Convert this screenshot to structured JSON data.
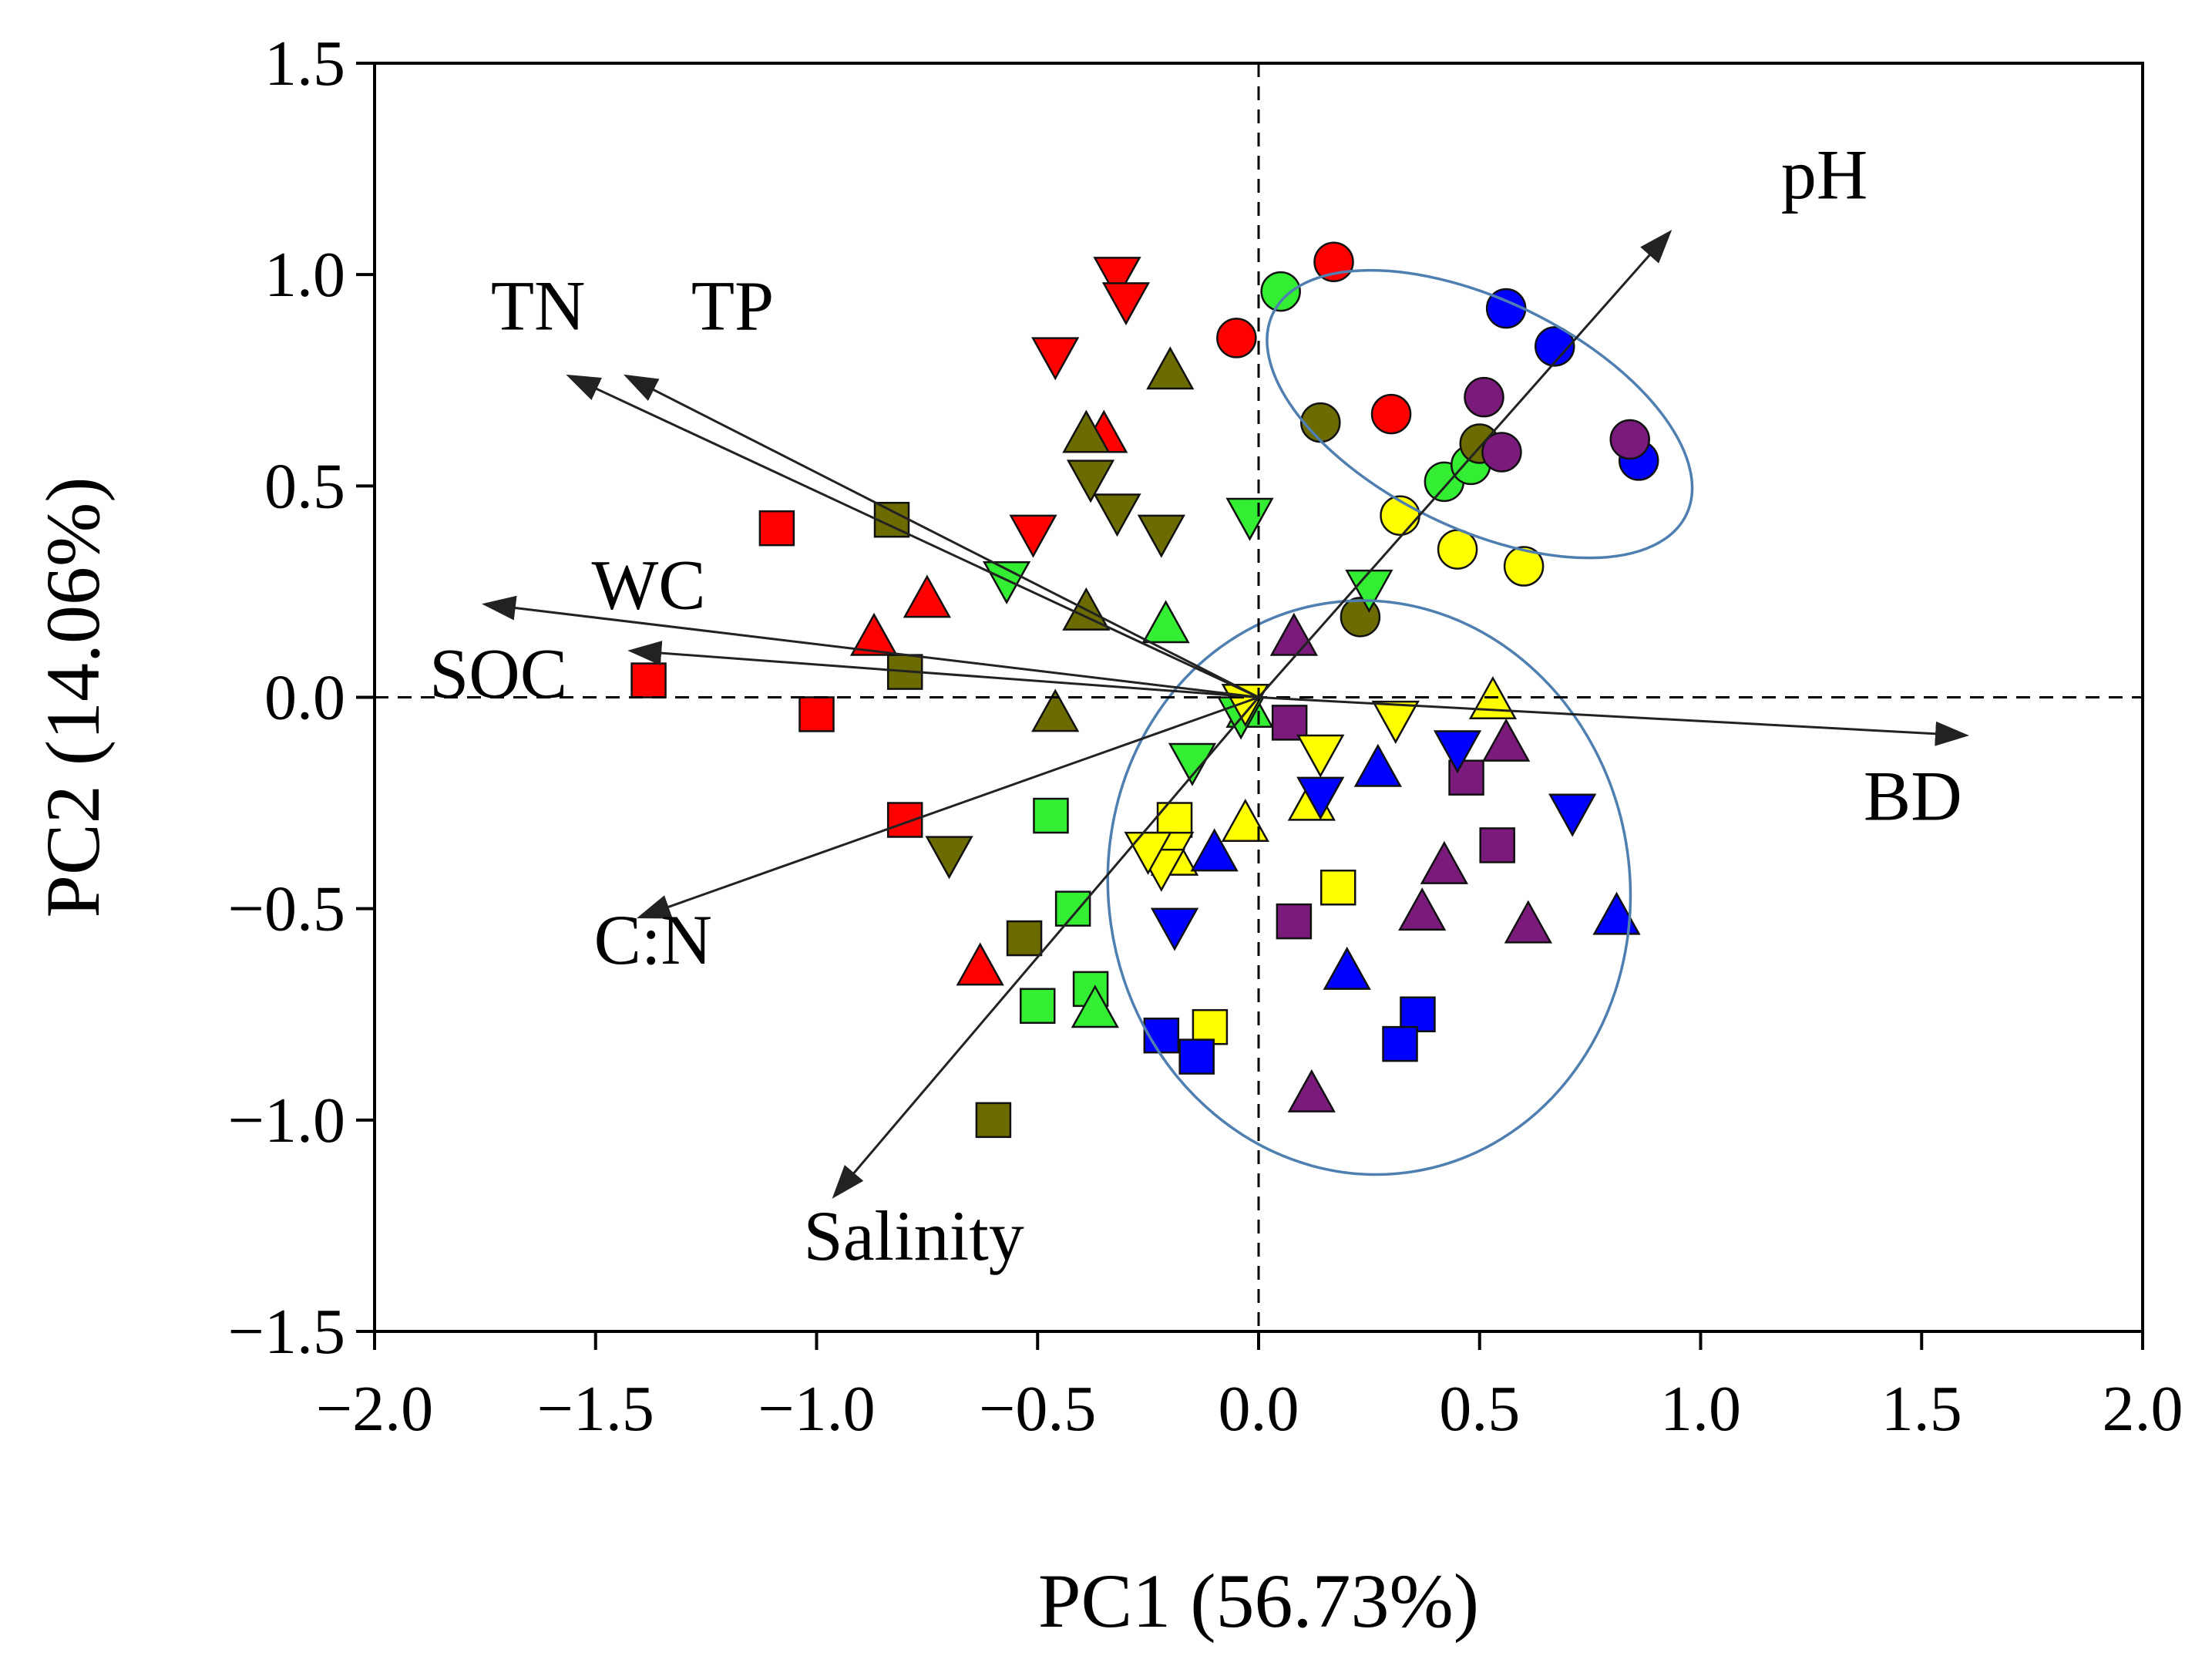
{
  "chart_data": {
    "type": "scatter",
    "xlabel": "PC1 (56.73%)",
    "ylabel": "PC2 (14.06%)",
    "xlim": [
      -2.0,
      2.0
    ],
    "ylim": [
      -1.5,
      1.5
    ],
    "xticks": [
      "−2.0",
      "−1.5",
      "−1.0",
      "−0.5",
      "0.0",
      "0.5",
      "1.0",
      "1.5",
      "2.0"
    ],
    "yticks": [
      "−1.5",
      "−1.0",
      "−0.5",
      "0.0",
      "0.5",
      "1.0",
      "1.5"
    ],
    "reference_lines": {
      "x": 0,
      "y": 0,
      "style": "dashed"
    },
    "grid": false,
    "colors": {
      "red": "#ff0000",
      "olive": "#6b6b00",
      "green": "#33ee33",
      "yellow": "#ffff00",
      "blue": "#0000ff",
      "purple": "#7a1a7a",
      "ellipse": "#4f7fb0"
    },
    "vectors": [
      {
        "label": "pH",
        "x": 0.93,
        "y": 1.1,
        "label_x": 1.28,
        "label_y": 1.18
      },
      {
        "label": "TN",
        "x": -1.56,
        "y": 0.76,
        "label_x": -1.63,
        "label_y": 0.87
      },
      {
        "label": "TP",
        "x": -1.43,
        "y": 0.76,
        "label_x": -1.19,
        "label_y": 0.87
      },
      {
        "label": "WC",
        "x": -1.75,
        "y": 0.22,
        "label_x": -1.38,
        "label_y": 0.21
      },
      {
        "label": "SOC",
        "x": -1.42,
        "y": 0.11,
        "label_x": -1.72,
        "label_y": 0.0
      },
      {
        "label": "C:N",
        "x": -1.4,
        "y": -0.52,
        "label_x": -1.37,
        "label_y": -0.63
      },
      {
        "label": "Salinity",
        "x": -0.96,
        "y": -1.18,
        "label_x": -0.78,
        "label_y": -1.33
      },
      {
        "label": "BD",
        "x": 1.6,
        "y": -0.09,
        "label_x": 1.48,
        "label_y": -0.29
      }
    ],
    "ellipses": [
      {
        "cx": 0.5,
        "cy": 0.67,
        "rx": 0.52,
        "ry": 0.27,
        "angle_deg": 26
      },
      {
        "cx": 0.25,
        "cy": -0.45,
        "rx": 0.59,
        "ry": 0.68,
        "angle_deg": -8
      }
    ],
    "points": [
      {
        "shape": "circle",
        "color": "red",
        "x": 0.17,
        "y": 1.03
      },
      {
        "shape": "circle",
        "color": "red",
        "x": -0.05,
        "y": 0.85
      },
      {
        "shape": "circle",
        "color": "red",
        "x": 0.3,
        "y": 0.67
      },
      {
        "shape": "circle",
        "color": "green",
        "x": 0.05,
        "y": 0.96
      },
      {
        "shape": "circle",
        "color": "green",
        "x": 0.42,
        "y": 0.51
      },
      {
        "shape": "circle",
        "color": "green",
        "x": 0.48,
        "y": 0.55
      },
      {
        "shape": "circle",
        "color": "olive",
        "x": 0.14,
        "y": 0.65
      },
      {
        "shape": "circle",
        "color": "olive",
        "x": 0.5,
        "y": 0.6
      },
      {
        "shape": "circle",
        "color": "olive",
        "x": 0.23,
        "y": 0.19
      },
      {
        "shape": "circle",
        "color": "blue",
        "x": 0.56,
        "y": 0.92
      },
      {
        "shape": "circle",
        "color": "blue",
        "x": 0.67,
        "y": 0.83
      },
      {
        "shape": "circle",
        "color": "blue",
        "x": 0.86,
        "y": 0.56
      },
      {
        "shape": "circle",
        "color": "purple",
        "x": 0.51,
        "y": 0.71
      },
      {
        "shape": "circle",
        "color": "purple",
        "x": 0.55,
        "y": 0.58
      },
      {
        "shape": "circle",
        "color": "purple",
        "x": 0.84,
        "y": 0.61
      },
      {
        "shape": "circle",
        "color": "yellow",
        "x": 0.32,
        "y": 0.43
      },
      {
        "shape": "circle",
        "color": "yellow",
        "x": 0.45,
        "y": 0.35
      },
      {
        "shape": "circle",
        "color": "yellow",
        "x": 0.6,
        "y": 0.31
      },
      {
        "shape": "square",
        "color": "red",
        "x": -1.09,
        "y": 0.4
      },
      {
        "shape": "square",
        "color": "red",
        "x": -1.38,
        "y": 0.04
      },
      {
        "shape": "square",
        "color": "red",
        "x": -1.0,
        "y": -0.04
      },
      {
        "shape": "square",
        "color": "red",
        "x": -0.8,
        "y": -0.29
      },
      {
        "shape": "square",
        "color": "olive",
        "x": -0.83,
        "y": 0.42
      },
      {
        "shape": "square",
        "color": "olive",
        "x": -0.8,
        "y": 0.06
      },
      {
        "shape": "square",
        "color": "olive",
        "x": -0.53,
        "y": -0.57
      },
      {
        "shape": "square",
        "color": "olive",
        "x": -0.6,
        "y": -1.0
      },
      {
        "shape": "square",
        "color": "green",
        "x": -0.47,
        "y": -0.28
      },
      {
        "shape": "square",
        "color": "green",
        "x": -0.42,
        "y": -0.5
      },
      {
        "shape": "square",
        "color": "green",
        "x": -0.5,
        "y": -0.73
      },
      {
        "shape": "square",
        "color": "green",
        "x": -0.38,
        "y": -0.69
      },
      {
        "shape": "square",
        "color": "yellow",
        "x": -0.19,
        "y": -0.29
      },
      {
        "shape": "square",
        "color": "yellow",
        "x": 0.18,
        "y": -0.45
      },
      {
        "shape": "square",
        "color": "yellow",
        "x": -0.11,
        "y": -0.78
      },
      {
        "shape": "square",
        "color": "blue",
        "x": -0.22,
        "y": -0.8
      },
      {
        "shape": "square",
        "color": "blue",
        "x": -0.14,
        "y": -0.85
      },
      {
        "shape": "square",
        "color": "blue",
        "x": 0.36,
        "y": -0.75
      },
      {
        "shape": "square",
        "color": "blue",
        "x": 0.32,
        "y": -0.82
      },
      {
        "shape": "square",
        "color": "purple",
        "x": 0.07,
        "y": -0.06
      },
      {
        "shape": "square",
        "color": "purple",
        "x": 0.47,
        "y": -0.19
      },
      {
        "shape": "square",
        "color": "purple",
        "x": 0.54,
        "y": -0.35
      },
      {
        "shape": "square",
        "color": "purple",
        "x": 0.08,
        "y": -0.53
      },
      {
        "shape": "triangle-up",
        "color": "red",
        "x": -0.35,
        "y": 0.62
      },
      {
        "shape": "triangle-up",
        "color": "red",
        "x": -0.75,
        "y": 0.23
      },
      {
        "shape": "triangle-up",
        "color": "red",
        "x": -0.87,
        "y": 0.14
      },
      {
        "shape": "triangle-up",
        "color": "red",
        "x": -0.63,
        "y": -0.64
      },
      {
        "shape": "triangle-up",
        "color": "olive",
        "x": -0.2,
        "y": 0.77
      },
      {
        "shape": "triangle-up",
        "color": "olive",
        "x": -0.39,
        "y": 0.62
      },
      {
        "shape": "triangle-up",
        "color": "olive",
        "x": -0.39,
        "y": 0.2
      },
      {
        "shape": "triangle-up",
        "color": "olive",
        "x": -0.46,
        "y": -0.04
      },
      {
        "shape": "triangle-up",
        "color": "green",
        "x": -0.21,
        "y": 0.17
      },
      {
        "shape": "triangle-up",
        "color": "green",
        "x": -0.02,
        "y": -0.03
      },
      {
        "shape": "triangle-up",
        "color": "green",
        "x": -0.37,
        "y": -0.74
      },
      {
        "shape": "triangle-up",
        "color": "yellow",
        "x": 0.53,
        "y": -0.01
      },
      {
        "shape": "triangle-up",
        "color": "yellow",
        "x": -0.03,
        "y": -0.3
      },
      {
        "shape": "triangle-up",
        "color": "yellow",
        "x": -0.19,
        "y": -0.38
      },
      {
        "shape": "triangle-up",
        "color": "yellow",
        "x": 0.12,
        "y": -0.25
      },
      {
        "shape": "triangle-up",
        "color": "blue",
        "x": 0.27,
        "y": -0.17
      },
      {
        "shape": "triangle-up",
        "color": "blue",
        "x": -0.1,
        "y": -0.37
      },
      {
        "shape": "triangle-up",
        "color": "blue",
        "x": 0.2,
        "y": -0.65
      },
      {
        "shape": "triangle-up",
        "color": "blue",
        "x": 0.81,
        "y": -0.52
      },
      {
        "shape": "triangle-up",
        "color": "purple",
        "x": 0.08,
        "y": 0.14
      },
      {
        "shape": "triangle-up",
        "color": "purple",
        "x": 0.56,
        "y": -0.11
      },
      {
        "shape": "triangle-up",
        "color": "purple",
        "x": 0.42,
        "y": -0.4
      },
      {
        "shape": "triangle-up",
        "color": "purple",
        "x": 0.37,
        "y": -0.51
      },
      {
        "shape": "triangle-up",
        "color": "purple",
        "x": 0.61,
        "y": -0.54
      },
      {
        "shape": "triangle-up",
        "color": "purple",
        "x": 0.12,
        "y": -0.94
      },
      {
        "shape": "triangle-down",
        "color": "red",
        "x": -0.32,
        "y": 1.0
      },
      {
        "shape": "triangle-down",
        "color": "red",
        "x": -0.3,
        "y": 0.94
      },
      {
        "shape": "triangle-down",
        "color": "red",
        "x": -0.46,
        "y": 0.81
      },
      {
        "shape": "triangle-down",
        "color": "red",
        "x": -0.51,
        "y": 0.39
      },
      {
        "shape": "triangle-down",
        "color": "olive",
        "x": -0.38,
        "y": 0.52
      },
      {
        "shape": "triangle-down",
        "color": "olive",
        "x": -0.32,
        "y": 0.44
      },
      {
        "shape": "triangle-down",
        "color": "olive",
        "x": -0.22,
        "y": 0.39
      },
      {
        "shape": "triangle-down",
        "color": "olive",
        "x": -0.7,
        "y": -0.37
      },
      {
        "shape": "triangle-down",
        "color": "olive",
        "x": -0.03,
        "y": -0.01
      },
      {
        "shape": "triangle-down",
        "color": "green",
        "x": -0.02,
        "y": 0.43
      },
      {
        "shape": "triangle-down",
        "color": "green",
        "x": -0.57,
        "y": 0.28
      },
      {
        "shape": "triangle-down",
        "color": "green",
        "x": 0.25,
        "y": 0.26
      },
      {
        "shape": "triangle-down",
        "color": "green",
        "x": -0.15,
        "y": -0.15
      },
      {
        "shape": "triangle-down",
        "color": "green",
        "x": -0.04,
        "y": -0.04
      },
      {
        "shape": "triangle-down",
        "color": "yellow",
        "x": 0.31,
        "y": -0.05
      },
      {
        "shape": "triangle-down",
        "color": "yellow",
        "x": 0.14,
        "y": -0.13
      },
      {
        "shape": "triangle-down",
        "color": "yellow",
        "x": -0.2,
        "y": -0.36
      },
      {
        "shape": "triangle-down",
        "color": "yellow",
        "x": -0.22,
        "y": -0.4
      },
      {
        "shape": "triangle-down",
        "color": "yellow",
        "x": -0.25,
        "y": -0.36
      },
      {
        "shape": "triangle-down",
        "color": "yellow",
        "x": -0.03,
        "y": -0.01
      },
      {
        "shape": "triangle-down",
        "color": "blue",
        "x": 0.14,
        "y": -0.23
      },
      {
        "shape": "triangle-down",
        "color": "blue",
        "x": 0.45,
        "y": -0.12
      },
      {
        "shape": "triangle-down",
        "color": "blue",
        "x": 0.71,
        "y": -0.27
      },
      {
        "shape": "triangle-down",
        "color": "blue",
        "x": -0.19,
        "y": -0.54
      }
    ]
  }
}
